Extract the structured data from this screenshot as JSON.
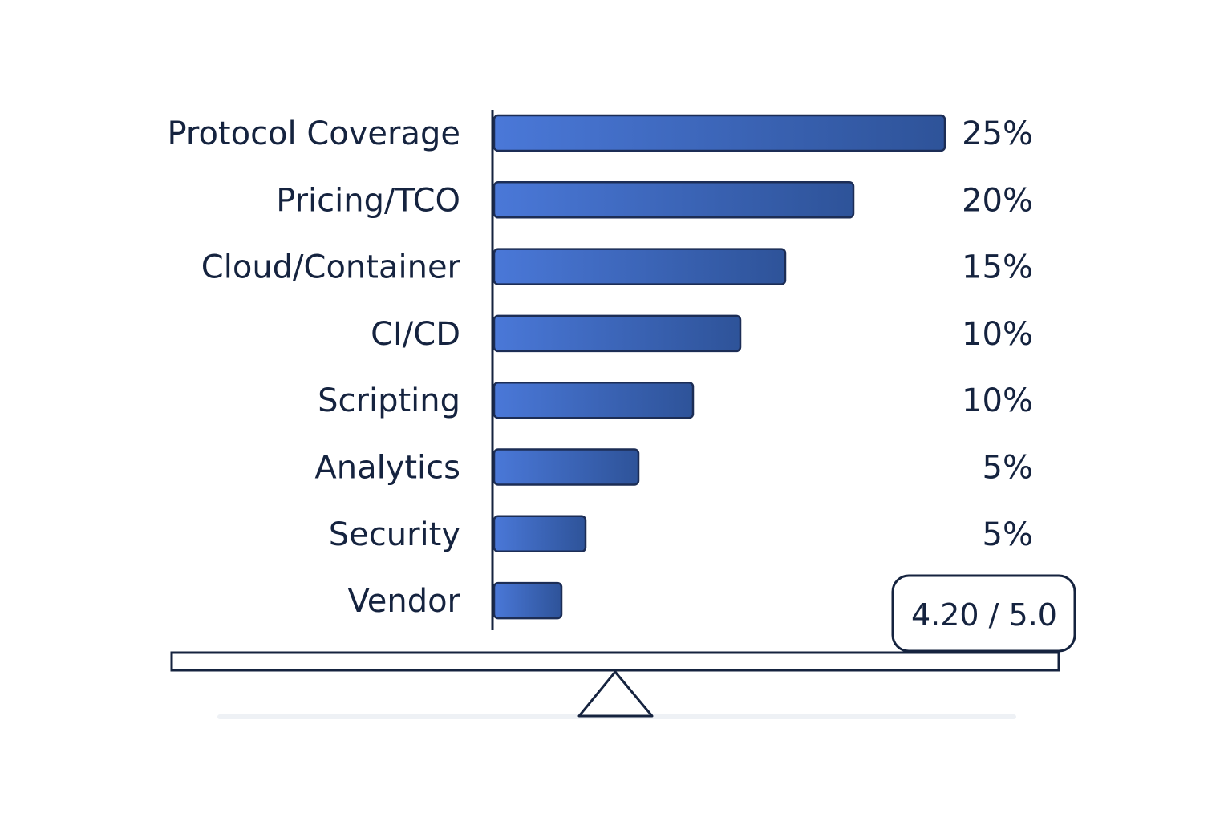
{
  "chart_data": {
    "type": "bar",
    "orientation": "horizontal",
    "categories": [
      "Protocol Coverage",
      "Pricing/TCO",
      "Cloud/Container",
      "CI/CD",
      "Scripting",
      "Analytics",
      "Security",
      "Vendor"
    ],
    "values": [
      25,
      20,
      15,
      10,
      10,
      5,
      5,
      5
    ],
    "value_labels": [
      "25%",
      "20%",
      "15%",
      "10%",
      "10%",
      "5%",
      "5%",
      ""
    ],
    "unit": "%",
    "xlim": [
      0,
      25
    ],
    "grid": false,
    "legend": "none",
    "title": "",
    "xlabel": "",
    "ylabel": ""
  },
  "score_badge": {
    "text": "4.20 / 5.0"
  },
  "colors": {
    "bar_start": "#4a78d8",
    "bar_end": "#2e5399",
    "bar_stroke": "#1c2d55",
    "text": "#15233f",
    "axis": "#15233f",
    "shadow": "#eef1f5"
  }
}
